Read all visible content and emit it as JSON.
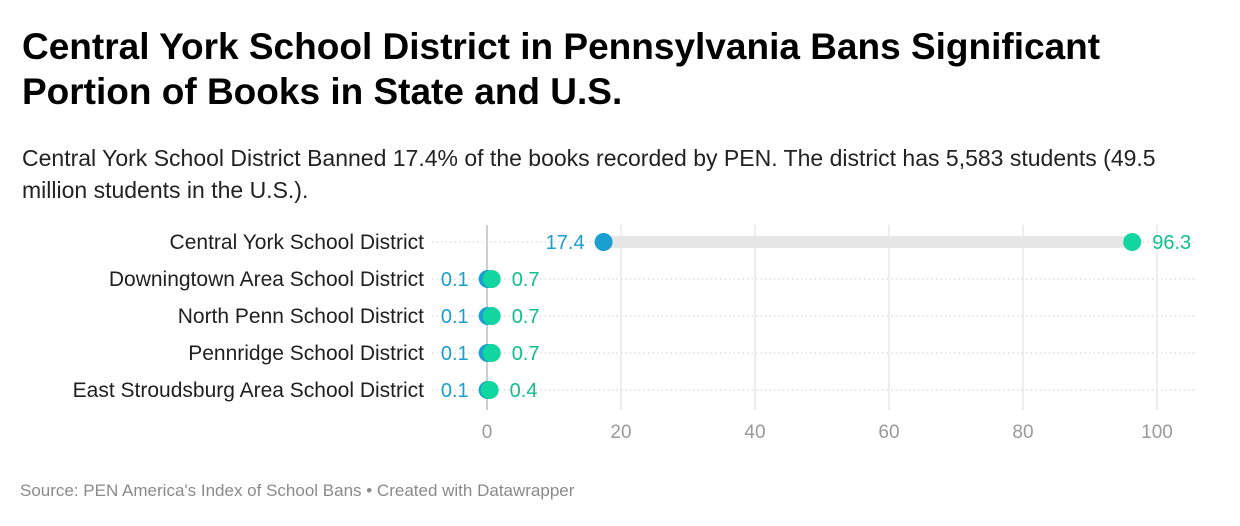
{
  "header": {
    "title": "Central York School District in Pennsylvania Bans Significant Portion of Books in State and U.S.",
    "subtitle": "Central York School District Banned 17.4% of the books recorded by PEN. The district has 5,583 students (49.5 million students in the U.S.)."
  },
  "footer": {
    "source": "Source: PEN America's Index of School Bans • Created with Datawrapper"
  },
  "chart_data": {
    "type": "dot",
    "categories": [
      "Central York School District",
      "Downingtown Area School District",
      "North Penn School District",
      "Pennridge School District",
      "East Stroudsburg Area School District"
    ],
    "series": [
      {
        "values": [
          17.4,
          0.1,
          0.1,
          0.1,
          0.1
        ],
        "color": "#1a9fd0"
      },
      {
        "values": [
          96.3,
          0.7,
          0.7,
          0.7,
          0.4
        ],
        "color": "#12d6a0"
      }
    ],
    "xlim": [
      0,
      100
    ],
    "xticks": [
      0,
      20,
      40,
      60,
      80,
      100
    ],
    "grid": true,
    "colors": {
      "range_bar": "#e6e6e6",
      "grid": "#dedede",
      "row_dots": "#cfcfcf",
      "tick_label": "#9a9a9a"
    }
  }
}
